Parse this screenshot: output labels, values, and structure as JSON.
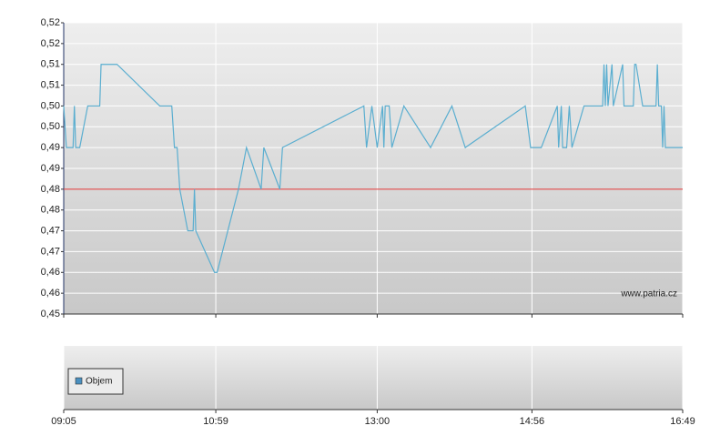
{
  "chart_data": [
    {
      "type": "line",
      "x": [
        "09:05",
        "09:07",
        "09:12",
        "09:13",
        "09:14",
        "09:17",
        "09:23",
        "09:32",
        "09:33",
        "09:45",
        "10:17",
        "10:26",
        "10:28",
        "10:30",
        "10:32",
        "10:38",
        "10:42",
        "10:43",
        "10:44",
        "10:58",
        "11:00",
        "11:16",
        "11:22",
        "11:33",
        "11:35",
        "11:47",
        "11:49",
        "12:50",
        "12:52",
        "12:56",
        "13:00",
        "13:04",
        "13:05",
        "13:06",
        "13:09",
        "13:11",
        "13:20",
        "13:40",
        "13:56",
        "14:06",
        "14:51",
        "14:55",
        "15:03",
        "15:15",
        "15:16",
        "15:18",
        "15:19",
        "15:22",
        "15:24",
        "15:26",
        "15:35",
        "15:49",
        "15:50",
        "15:51",
        "15:52",
        "15:53",
        "15:56",
        "15:57",
        "16:04",
        "16:05",
        "16:12",
        "16:13",
        "16:14",
        "16:19",
        "16:29",
        "16:30",
        "16:31",
        "16:33",
        "16:34",
        "16:35",
        "16:36",
        "16:49"
      ],
      "series": [
        {
          "color": "#5aaed0",
          "values": [
            0.5,
            0.49,
            0.49,
            0.5,
            0.49,
            0.49,
            0.5,
            0.5,
            0.51,
            0.51,
            0.5,
            0.5,
            0.49,
            0.49,
            0.48,
            0.47,
            0.47,
            0.48,
            0.47,
            0.46,
            0.46,
            0.48,
            0.49,
            0.48,
            0.49,
            0.48,
            0.49,
            0.5,
            0.49,
            0.5,
            0.49,
            0.5,
            0.49,
            0.5,
            0.5,
            0.49,
            0.5,
            0.49,
            0.5,
            0.49,
            0.5,
            0.49,
            0.49,
            0.5,
            0.49,
            0.5,
            0.49,
            0.49,
            0.5,
            0.49,
            0.5,
            0.5,
            0.51,
            0.5,
            0.51,
            0.5,
            0.51,
            0.5,
            0.51,
            0.5,
            0.5,
            0.51,
            0.51,
            0.5,
            0.5,
            0.51,
            0.5,
            0.5,
            0.49,
            0.5,
            0.49,
            0.49
          ]
        }
      ],
      "reference": {
        "value": 0.48,
        "color": "#dd3333"
      },
      "xlim": [
        "09:05",
        "16:49"
      ],
      "xticks": [
        "09:05",
        "10:59",
        "13:00",
        "14:56",
        "16:49"
      ],
      "ylim": [
        0.45,
        0.52
      ],
      "yticks": [
        {
          "value": 0.45,
          "label": "0,45"
        },
        {
          "value": 0.455,
          "label": "0,46"
        },
        {
          "value": 0.46,
          "label": "0,46"
        },
        {
          "value": 0.465,
          "label": "0,47"
        },
        {
          "value": 0.47,
          "label": "0,47"
        },
        {
          "value": 0.475,
          "label": "0,48"
        },
        {
          "value": 0.48,
          "label": "0,48"
        },
        {
          "value": 0.485,
          "label": "0,49"
        },
        {
          "value": 0.49,
          "label": "0,49"
        },
        {
          "value": 0.495,
          "label": "0,50"
        },
        {
          "value": 0.5,
          "label": "0,50"
        },
        {
          "value": 0.505,
          "label": "0,51"
        },
        {
          "value": 0.51,
          "label": "0,51"
        },
        {
          "value": 0.515,
          "label": "0,52"
        },
        {
          "value": 0.52,
          "label": "0,52"
        }
      ],
      "grid": true,
      "watermark": "www.patria.cz"
    },
    {
      "type": "bar",
      "series": [
        {
          "name": "Objem",
          "color": "#4a90c0",
          "values": []
        }
      ],
      "legend": "bottom-left"
    }
  ]
}
